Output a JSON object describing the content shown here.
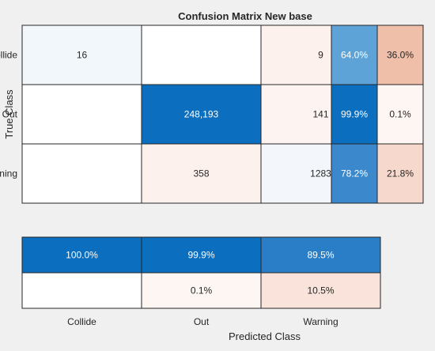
{
  "chart_data": {
    "type": "heatmap",
    "title": "Confusion Matrix New base",
    "xlabel": "Predicted Class",
    "ylabel": "True Class",
    "classes": [
      "Collide",
      "Out",
      "Warning"
    ],
    "matrix": {
      "values": [
        [
          16,
          null,
          9
        ],
        [
          null,
          248193,
          141
        ],
        [
          null,
          358,
          1283
        ]
      ],
      "labels": [
        [
          "16",
          "",
          "9"
        ],
        [
          "",
          "248,193",
          "141"
        ],
        [
          "",
          "358",
          "1283"
        ]
      ],
      "fills": [
        [
          "#f2f7fc",
          "#ffffff",
          "#fdf1ee"
        ],
        [
          "#ffffff",
          "#0b6ebf",
          "#fdf4f1"
        ],
        [
          "#ffffff",
          "#fdf1ee",
          "#f3f7fc"
        ]
      ],
      "text_colors": [
        [
          "#262626",
          "#262626",
          "#262626"
        ],
        [
          "#262626",
          "#ffffff",
          "#262626"
        ],
        [
          "#262626",
          "#262626",
          "#262626"
        ]
      ]
    },
    "row_summary": {
      "labels": [
        [
          "64.0%",
          "36.0%"
        ],
        [
          "99.9%",
          "0.1%"
        ],
        [
          "78.2%",
          "21.8%"
        ]
      ],
      "fills": [
        [
          "#5da3d7",
          "#f0bfaa"
        ],
        [
          "#0b6ebf",
          "#fdf6f3"
        ],
        [
          "#3b88cc",
          "#f7d8cc"
        ]
      ],
      "text_colors": [
        [
          "#ffffff",
          "#262626"
        ],
        [
          "#ffffff",
          "#262626"
        ],
        [
          "#ffffff",
          "#262626"
        ]
      ]
    },
    "column_summary": {
      "labels": [
        [
          "100.0%",
          "99.9%",
          "89.5%"
        ],
        [
          "",
          "0.1%",
          "10.5%"
        ]
      ],
      "fills": [
        [
          "#0b6ebf",
          "#0b6ebf",
          "#2a7ec7"
        ],
        [
          "#ffffff",
          "#fdf6f3",
          "#f9e3da"
        ]
      ],
      "text_colors": [
        [
          "#ffffff",
          "#ffffff",
          "#ffffff"
        ],
        [
          "#262626",
          "#262626",
          "#262626"
        ]
      ]
    },
    "colors": {
      "background": "#f0f0f0",
      "grid_line": "#262626",
      "text": "#262626"
    }
  }
}
